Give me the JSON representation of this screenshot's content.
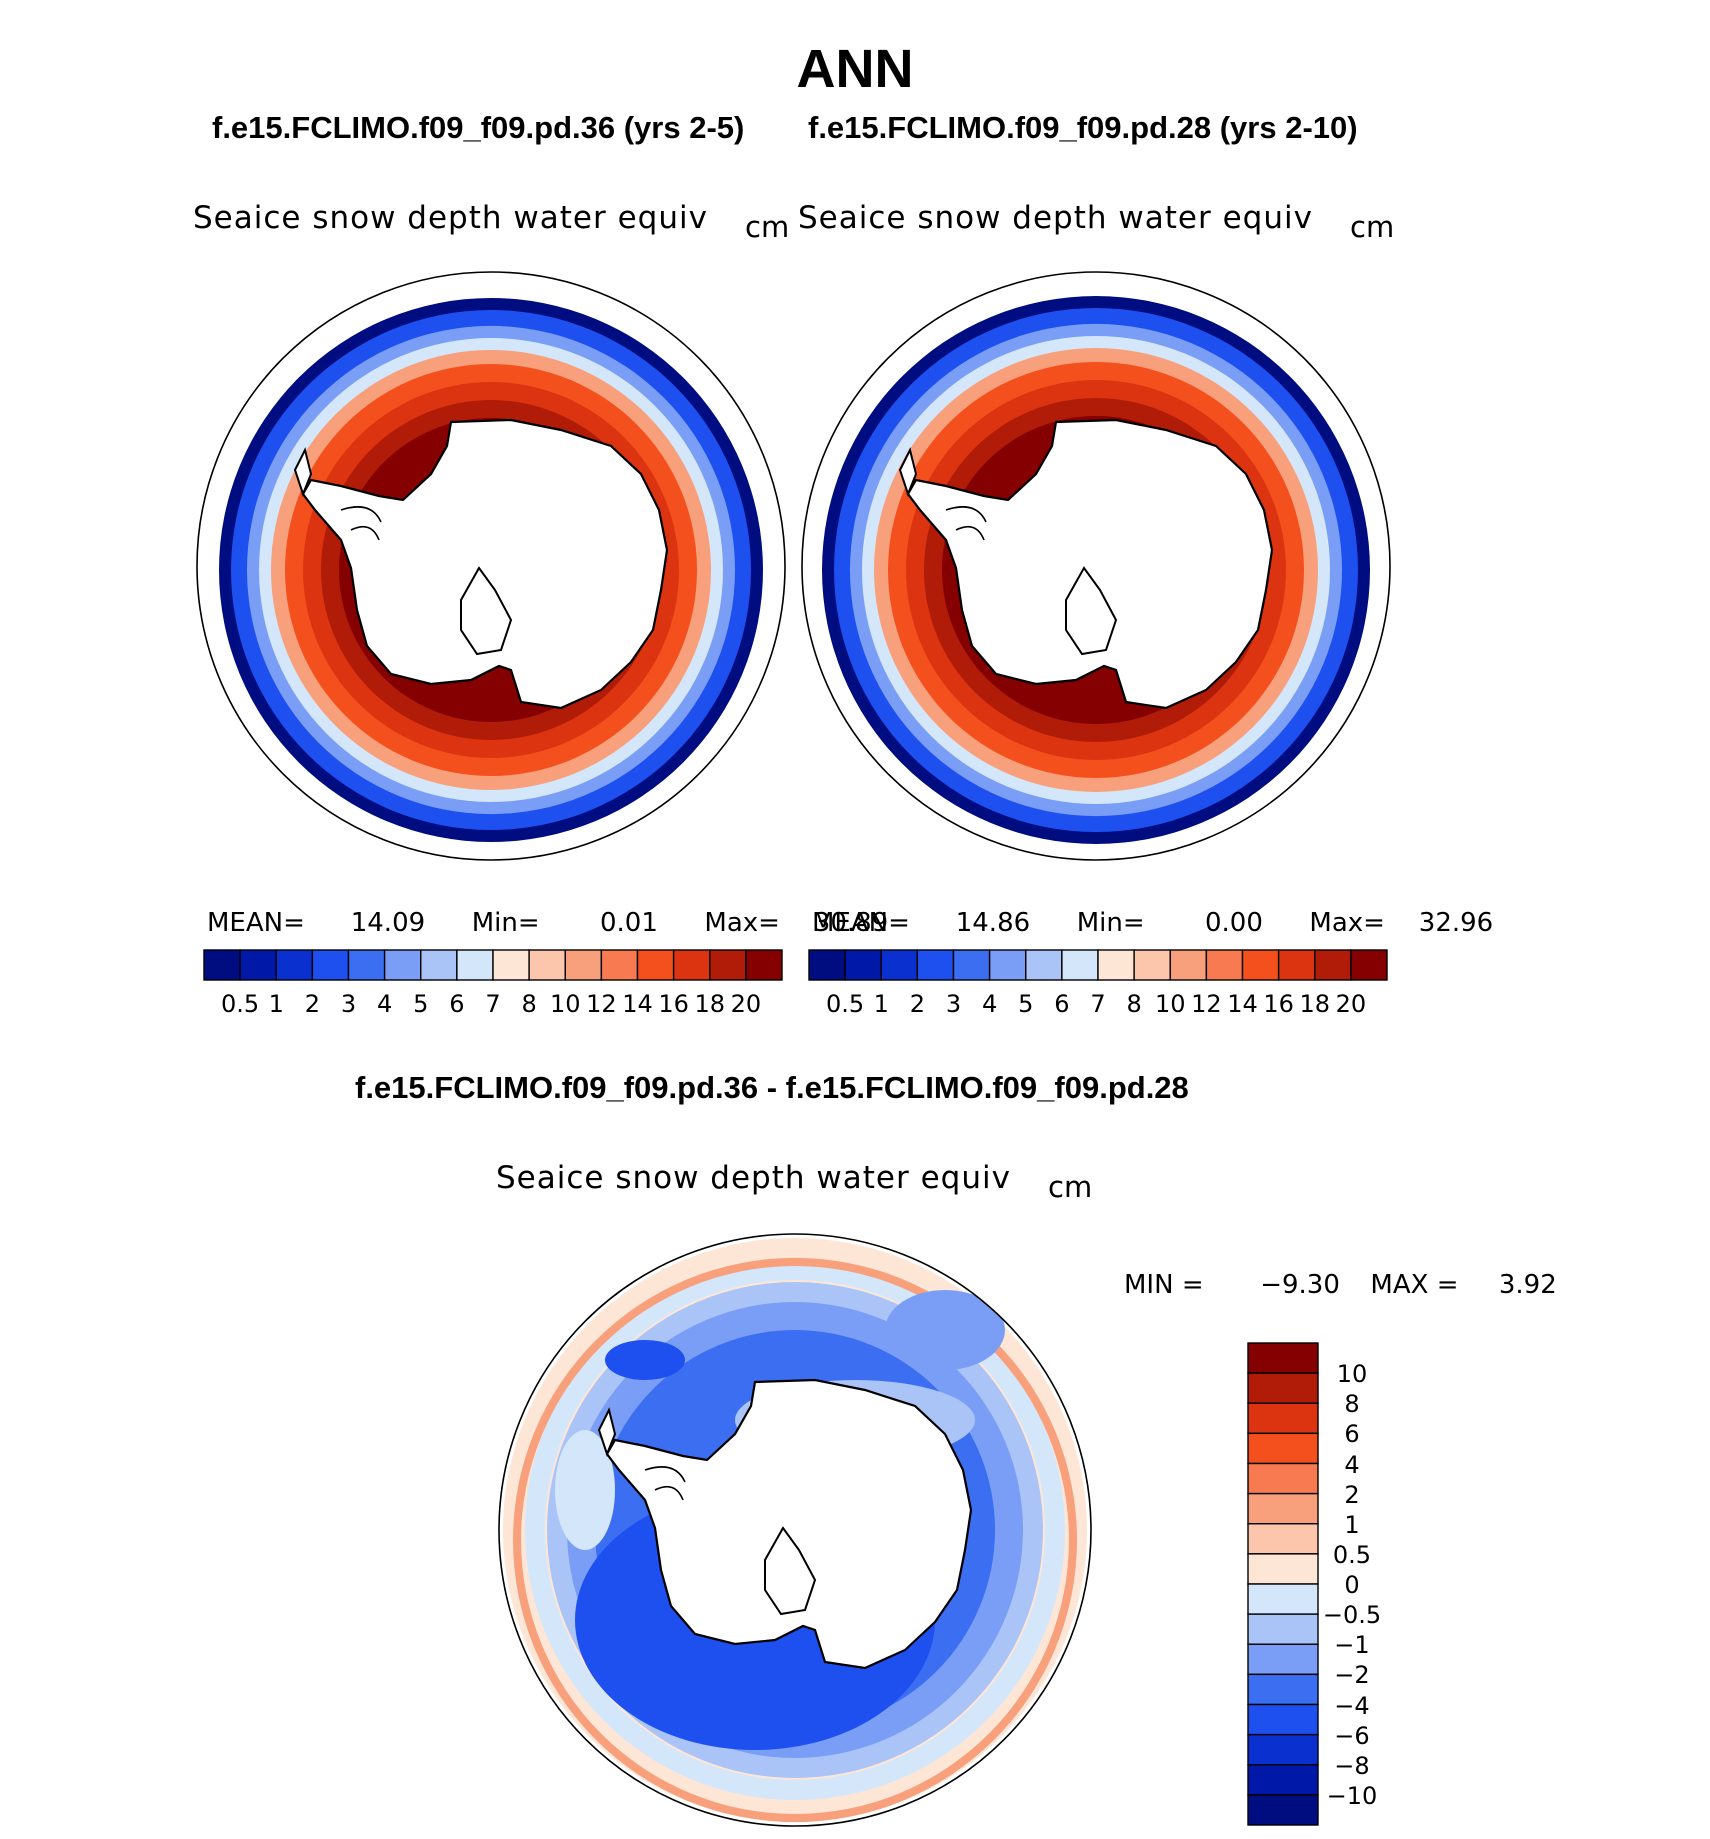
{
  "figure": {
    "title": "ANN",
    "left_case": "f.e15.FCLIMO.f09_f09.pd.36 (yrs 2-5)",
    "right_case": "f.e15.FCLIMO.f09_f09.pd.28 (yrs 2-10)",
    "diff_case": "f.e15.FCLIMO.f09_f09.pd.36 - f.e15.FCLIMO.f09_f09.pd.28"
  },
  "panels": [
    {
      "variable": "Seaice snow depth water equiv",
      "units": "cm",
      "stats": {
        "mean_label": "MEAN=",
        "mean": "14.09",
        "min_label": "Min=",
        "min": "0.01",
        "max_label": "Max=",
        "max": "30.89"
      }
    },
    {
      "variable": "Seaice snow depth water equiv",
      "units": "cm",
      "stats": {
        "mean_label": "MEAN=",
        "mean": "14.86",
        "min_label": "Min=",
        "min": "0.00",
        "max_label": "Max=",
        "max": "32.96"
      }
    }
  ],
  "diff_panel": {
    "variable": "Seaice snow depth water equiv",
    "units": "cm",
    "min_label": "MIN =",
    "min": "−9.30",
    "max_label": "MAX =",
    "max": "3.92"
  },
  "colorbar_abs": {
    "labels": [
      "0.5",
      "1",
      "2",
      "3",
      "4",
      "5",
      "6",
      "7",
      "8",
      "10",
      "12",
      "14",
      "16",
      "18",
      "20"
    ],
    "colors": [
      "#000d80",
      "#0018a8",
      "#0a30d0",
      "#1e50f0",
      "#3c6ef2",
      "#7a9ef5",
      "#aac4f8",
      "#d4e6fa",
      "#fde6d6",
      "#fbc6ab",
      "#f8a07c",
      "#f77a50",
      "#f4501e",
      "#dc3410",
      "#b01c08",
      "#850000"
    ]
  },
  "colorbar_diff": {
    "labels": [
      "10",
      "8",
      "6",
      "4",
      "2",
      "1",
      "0.5",
      "0",
      "−0.5",
      "−1",
      "−2",
      "−4",
      "−6",
      "−8",
      "−10"
    ],
    "colors": [
      "#850000",
      "#b01c08",
      "#dc3410",
      "#f4501e",
      "#f77a50",
      "#f8a07c",
      "#fbc6ab",
      "#fde6d6",
      "#d4e6fa",
      "#aac4f8",
      "#7a9ef5",
      "#3c6ef2",
      "#1e50f0",
      "#0a30d0",
      "#0018a8",
      "#000d80"
    ]
  }
}
